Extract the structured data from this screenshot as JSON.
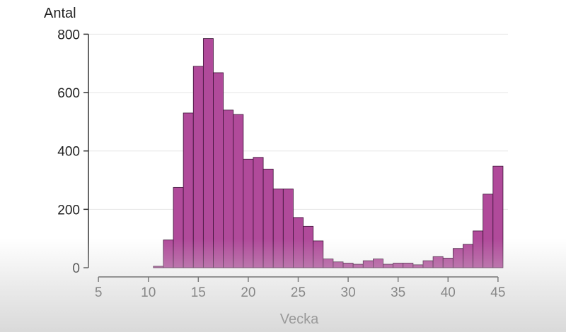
{
  "chart_data": {
    "type": "bar",
    "xlabel": "Vecka",
    "ylabel": "Antal",
    "xlim": [
      4,
      46
    ],
    "ylim": [
      0,
      830
    ],
    "xticks": [
      5,
      10,
      15,
      20,
      25,
      30,
      35,
      40,
      45
    ],
    "yticks": [
      0,
      200,
      400,
      600,
      800
    ],
    "grid": true,
    "bar_color": "#b04a9a",
    "bar_edge_color": "#3a1235",
    "x": [
      11,
      12,
      13,
      14,
      15,
      16,
      17,
      18,
      19,
      20,
      21,
      22,
      23,
      24,
      25,
      26,
      27,
      28,
      29,
      30,
      31,
      32,
      33,
      34,
      35,
      36,
      37,
      38,
      39,
      40,
      41,
      42,
      43,
      44,
      45
    ],
    "values": [
      5,
      95,
      275,
      530,
      690,
      785,
      668,
      540,
      525,
      372,
      378,
      338,
      270,
      270,
      172,
      142,
      92,
      30,
      20,
      16,
      12,
      24,
      30,
      12,
      16,
      16,
      10,
      24,
      38,
      33,
      66,
      80,
      126,
      252,
      348
    ]
  }
}
